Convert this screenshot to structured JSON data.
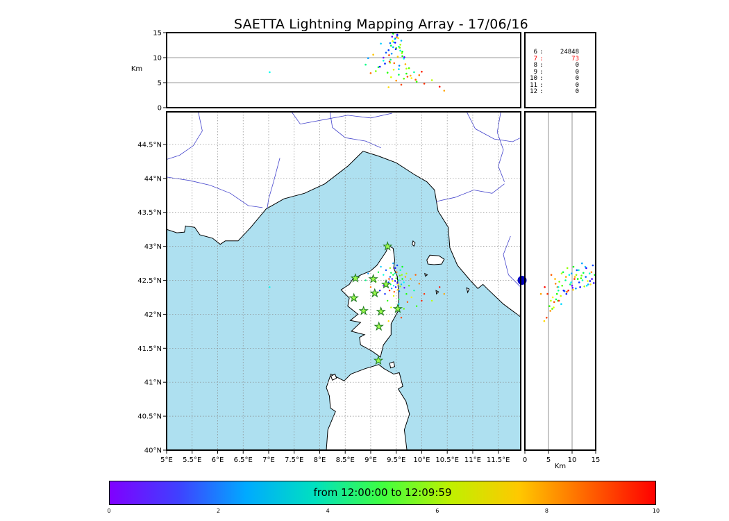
{
  "title": "SAETTA Lightning Mapping Array - 17/06/16",
  "axis_labels": {
    "top_y": "Km",
    "right_x": "Km"
  },
  "stats": {
    "separator": ":",
    "rows": [
      {
        "label": "6",
        "value": "24848",
        "color": "#000000"
      },
      {
        "label": "7",
        "value": "73",
        "color": "#ff0000"
      },
      {
        "label": "8",
        "value": "0",
        "color": "#000000"
      },
      {
        "label": "9",
        "value": "0",
        "color": "#000000"
      },
      {
        "label": "10",
        "value": "0",
        "color": "#000000"
      },
      {
        "label": "11",
        "value": "0",
        "color": "#000000"
      },
      {
        "label": "12",
        "value": "0",
        "color": "#000000"
      }
    ]
  },
  "colorbar": {
    "label": "from 12:00:00 to 12:09:59",
    "tmin": 0,
    "tmax": 10,
    "ticks": [
      {
        "v": 0,
        "label": "0"
      },
      {
        "v": 2,
        "label": "2"
      },
      {
        "v": 4,
        "label": "4"
      },
      {
        "v": 6,
        "label": "6"
      },
      {
        "v": 8,
        "label": "8"
      },
      {
        "v": 10,
        "label": "10"
      }
    ],
    "gradient": [
      "#8000ff",
      "#4040ff",
      "#00aaff",
      "#00e0c0",
      "#40ff40",
      "#c0f000",
      "#ffc800",
      "#ff6400",
      "#ff0000"
    ]
  },
  "colors": {
    "sea": "#aee0f0",
    "land": "#ffffff",
    "coast": "#000000",
    "river": "#4444cc",
    "grid": "#888888",
    "panel_grid": "#777777",
    "station_fill": "#9dfb50",
    "station_edge": "#1f7a1f",
    "marker_blue": "#0000bb"
  },
  "chart_data": {
    "type": "scatter",
    "title": "SAETTA Lightning Mapping Array - 17/06/16",
    "panels": {
      "top": {
        "name": "altitude-vs-longitude",
        "ylabel": "Km",
        "ylim": [
          0,
          15
        ],
        "yticks": [
          {
            "v": 0,
            "label": "0"
          },
          {
            "v": 5,
            "label": "5"
          },
          {
            "v": 10,
            "label": "10"
          },
          {
            "v": 15,
            "label": "15"
          }
        ]
      },
      "map": {
        "name": "plan-view",
        "xlim": [
          5,
          11.94
        ],
        "ylim": [
          40,
          44.98
        ],
        "lon_ticks": [
          {
            "v": 5,
            "label": "5°E"
          },
          {
            "v": 5.5,
            "label": "5.5°E"
          },
          {
            "v": 6,
            "label": "6°E"
          },
          {
            "v": 6.5,
            "label": "6.5°E"
          },
          {
            "v": 7,
            "label": "7°E"
          },
          {
            "v": 7.5,
            "label": "7.5°E"
          },
          {
            "v": 8,
            "label": "8°E"
          },
          {
            "v": 8.5,
            "label": "8.5°E"
          },
          {
            "v": 9,
            "label": "9°E"
          },
          {
            "v": 9.5,
            "label": "9.5°E"
          },
          {
            "v": 10,
            "label": "10°E"
          },
          {
            "v": 10.5,
            "label": "10.5°E"
          },
          {
            "v": 11,
            "label": "11°E"
          },
          {
            "v": 11.5,
            "label": "11.5°E"
          }
        ],
        "lat_ticks": [
          {
            "v": 40,
            "label": "40°N"
          },
          {
            "v": 40.5,
            "label": "40.5°N"
          },
          {
            "v": 41,
            "label": "41°N"
          },
          {
            "v": 41.5,
            "label": "41.5°N"
          },
          {
            "v": 42,
            "label": "42°N"
          },
          {
            "v": 42.5,
            "label": "42.5°N"
          },
          {
            "v": 43,
            "label": "43°N"
          },
          {
            "v": 43.5,
            "label": "43.5°N"
          },
          {
            "v": 44,
            "label": "44°N"
          },
          {
            "v": 44.5,
            "label": "44.5°N"
          }
        ]
      },
      "right": {
        "name": "altitude-vs-latitude",
        "xlabel": "Km",
        "xlim": [
          0,
          15
        ],
        "xticks": [
          {
            "v": 0,
            "label": "0"
          },
          {
            "v": 5,
            "label": "5"
          },
          {
            "v": 10,
            "label": "10"
          },
          {
            "v": 15,
            "label": "15"
          }
        ],
        "marker": {
          "km": 0,
          "lat": 42.5
        }
      }
    },
    "points": [
      [
        9.42,
        42.52,
        14.2,
        0.5
      ],
      [
        9.48,
        42.49,
        13.8,
        1.2
      ],
      [
        9.38,
        42.55,
        12.9,
        2.0
      ],
      [
        9.52,
        42.46,
        14.6,
        0.8
      ],
      [
        9.45,
        42.42,
        13.1,
        3.1
      ],
      [
        9.55,
        42.5,
        12.2,
        4.0
      ],
      [
        9.35,
        42.47,
        11.5,
        1.6
      ],
      [
        9.6,
        42.44,
        13.4,
        2.7
      ],
      [
        9.44,
        42.58,
        14.8,
        5.2
      ],
      [
        9.5,
        42.53,
        11.9,
        6.1
      ],
      [
        9.41,
        42.38,
        10.8,
        2.4
      ],
      [
        9.58,
        42.41,
        12.6,
        7.0
      ],
      [
        9.47,
        42.6,
        13.7,
        3.8
      ],
      [
        9.53,
        42.36,
        10.2,
        8.2
      ],
      [
        9.39,
        42.44,
        9.6,
        4.6
      ],
      [
        9.62,
        42.52,
        11.2,
        5.5
      ],
      [
        9.46,
        42.33,
        8.9,
        9.1
      ],
      [
        9.57,
        42.57,
        12.0,
        6.6
      ],
      [
        9.43,
        42.49,
        13.3,
        7.7
      ],
      [
        9.51,
        42.62,
        14.1,
        8.8
      ],
      [
        9.36,
        42.52,
        10.5,
        9.5
      ],
      [
        9.65,
        42.47,
        9.8,
        3.3
      ],
      [
        9.49,
        42.4,
        11.7,
        1.0
      ],
      [
        9.56,
        42.34,
        8.4,
        2.2
      ],
      [
        9.4,
        42.61,
        12.4,
        4.9
      ],
      [
        9.61,
        42.58,
        10.9,
        6.9
      ],
      [
        9.45,
        42.27,
        7.6,
        7.4
      ],
      [
        9.54,
        42.44,
        13.9,
        8.0
      ],
      [
        9.37,
        42.35,
        9.2,
        9.8
      ],
      [
        9.66,
        42.39,
        10.1,
        0.3
      ],
      [
        9.7,
        42.3,
        6.8,
        5.8
      ],
      [
        9.75,
        42.42,
        7.9,
        6.3
      ],
      [
        9.8,
        42.25,
        5.9,
        7.9
      ],
      [
        9.68,
        42.55,
        8.7,
        8.5
      ],
      [
        9.72,
        42.18,
        6.2,
        9.3
      ],
      [
        9.85,
        42.35,
        7.1,
        4.2
      ],
      [
        9.9,
        42.12,
        5.2,
        6.0
      ],
      [
        9.95,
        42.45,
        6.5,
        8.9
      ],
      [
        10.05,
        42.3,
        4.8,
        9.6
      ],
      [
        10.2,
        42.2,
        5.5,
        7.2
      ],
      [
        10.35,
        42.4,
        4.2,
        9.9
      ],
      [
        9.3,
        42.65,
        11.0,
        1.8
      ],
      [
        9.25,
        42.58,
        9.4,
        3.6
      ],
      [
        9.2,
        42.7,
        12.8,
        2.9
      ],
      [
        9.15,
        42.62,
        8.1,
        5.0
      ],
      [
        9.1,
        42.48,
        7.3,
        6.7
      ],
      [
        9.05,
        42.55,
        10.6,
        8.3
      ],
      [
        9.0,
        42.4,
        6.9,
        9.0
      ],
      [
        8.95,
        42.6,
        9.9,
        2.5
      ],
      [
        8.9,
        42.5,
        8.6,
        4.4
      ],
      [
        9.33,
        42.2,
        7.0,
        5.9
      ],
      [
        9.4,
        42.1,
        6.1,
        7.5
      ],
      [
        9.5,
        42.05,
        5.4,
        8.7
      ],
      [
        9.6,
        41.95,
        4.6,
        9.4
      ],
      [
        9.55,
        42.15,
        7.7,
        3.0
      ],
      [
        9.65,
        42.08,
        5.8,
        6.4
      ],
      [
        9.28,
        42.3,
        8.8,
        1.4
      ],
      [
        9.35,
        41.9,
        4.1,
        8.1
      ],
      [
        9.48,
        42.68,
        13.0,
        0.9
      ],
      [
        9.52,
        42.72,
        14.4,
        1.7
      ],
      [
        9.44,
        42.75,
        12.1,
        2.6
      ],
      [
        9.58,
        42.65,
        11.4,
        3.9
      ],
      [
        9.62,
        42.7,
        10.3,
        5.4
      ],
      [
        9.38,
        42.68,
        9.0,
        6.8
      ],
      [
        9.55,
        42.22,
        6.6,
        4.8
      ],
      [
        9.7,
        42.6,
        7.8,
        7.1
      ],
      [
        9.78,
        42.52,
        6.4,
        8.4
      ],
      [
        9.88,
        42.58,
        5.6,
        9.2
      ],
      [
        9.25,
        42.42,
        10.0,
        0.2
      ],
      [
        9.18,
        42.35,
        8.2,
        1.1
      ],
      [
        7.02,
        42.4,
        7.1,
        3.5
      ],
      [
        10.44,
        42.3,
        3.4,
        8.6
      ],
      [
        10.0,
        42.2,
        7.2,
        9.7
      ]
    ],
    "stations": [
      [
        9.33,
        43.0
      ],
      [
        8.7,
        42.53
      ],
      [
        9.05,
        42.52
      ],
      [
        9.3,
        42.44
      ],
      [
        9.08,
        42.31
      ],
      [
        8.67,
        42.24
      ],
      [
        8.86,
        42.05
      ],
      [
        9.2,
        42.04
      ],
      [
        9.53,
        42.08
      ],
      [
        9.16,
        41.82
      ],
      [
        9.15,
        41.32
      ]
    ],
    "coastlines": {
      "mainland": [
        [
          5.0,
          43.25
        ],
        [
          5.2,
          43.2
        ],
        [
          5.35,
          43.21
        ],
        [
          5.37,
          43.3
        ],
        [
          5.55,
          43.28
        ],
        [
          5.65,
          43.17
        ],
        [
          5.9,
          43.12
        ],
        [
          6.05,
          43.03
        ],
        [
          6.15,
          43.08
        ],
        [
          6.4,
          43.08
        ],
        [
          6.65,
          43.28
        ],
        [
          6.95,
          43.55
        ],
        [
          7.3,
          43.7
        ],
        [
          7.7,
          43.78
        ],
        [
          8.1,
          43.92
        ],
        [
          8.55,
          44.18
        ],
        [
          8.85,
          44.4
        ],
        [
          9.15,
          44.33
        ],
        [
          9.5,
          44.23
        ],
        [
          9.85,
          44.06
        ],
        [
          10.1,
          43.95
        ],
        [
          10.25,
          43.83
        ],
        [
          10.32,
          43.52
        ],
        [
          10.52,
          43.28
        ],
        [
          10.55,
          42.98
        ],
        [
          10.7,
          42.72
        ],
        [
          10.95,
          42.5
        ],
        [
          11.1,
          42.38
        ],
        [
          11.2,
          42.44
        ],
        [
          11.28,
          42.38
        ],
        [
          11.6,
          42.15
        ],
        [
          11.94,
          41.96
        ],
        [
          11.94,
          44.98
        ],
        [
          5.0,
          44.98
        ]
      ],
      "corsica": [
        [
          9.35,
          43.01
        ],
        [
          9.44,
          42.97
        ],
        [
          9.47,
          42.8
        ],
        [
          9.45,
          42.68
        ],
        [
          9.52,
          42.56
        ],
        [
          9.55,
          42.28
        ],
        [
          9.54,
          42.05
        ],
        [
          9.4,
          41.86
        ],
        [
          9.4,
          41.7
        ],
        [
          9.25,
          41.55
        ],
        [
          9.19,
          41.37
        ],
        [
          9.02,
          41.46
        ],
        [
          8.8,
          41.55
        ],
        [
          8.78,
          41.66
        ],
        [
          8.88,
          41.7
        ],
        [
          8.62,
          41.75
        ],
        [
          8.8,
          41.88
        ],
        [
          8.6,
          41.91
        ],
        [
          8.75,
          42.0
        ],
        [
          8.55,
          42.12
        ],
        [
          8.58,
          42.24
        ],
        [
          8.42,
          42.36
        ],
        [
          8.58,
          42.44
        ],
        [
          8.65,
          42.52
        ],
        [
          8.81,
          42.58
        ],
        [
          9.0,
          42.64
        ],
        [
          9.12,
          42.72
        ],
        [
          9.3,
          42.92
        ]
      ],
      "sardinia": [
        [
          8.13,
          40.0
        ],
        [
          8.16,
          40.3
        ],
        [
          8.31,
          40.57
        ],
        [
          8.21,
          40.62
        ],
        [
          8.19,
          40.8
        ],
        [
          8.13,
          40.92
        ],
        [
          8.22,
          41.12
        ],
        [
          8.48,
          41.02
        ],
        [
          8.61,
          41.12
        ],
        [
          8.89,
          41.2
        ],
        [
          9.16,
          41.26
        ],
        [
          9.26,
          41.2
        ],
        [
          9.45,
          41.12
        ],
        [
          9.56,
          41.14
        ],
        [
          9.63,
          40.94
        ],
        [
          9.54,
          40.9
        ],
        [
          9.69,
          40.72
        ],
        [
          9.76,
          40.53
        ],
        [
          9.66,
          40.3
        ],
        [
          9.71,
          40.0
        ]
      ],
      "islands": [
        [
          [
            10.1,
            42.8
          ],
          [
            10.16,
            42.87
          ],
          [
            10.34,
            42.86
          ],
          [
            10.44,
            42.81
          ],
          [
            10.39,
            42.74
          ],
          [
            10.24,
            42.73
          ],
          [
            10.12,
            42.74
          ]
        ],
        [
          [
            9.83,
            43.08
          ],
          [
            9.87,
            43.05
          ],
          [
            9.85,
            43.0
          ],
          [
            9.81,
            43.03
          ]
        ],
        [
          [
            8.22,
            41.09
          ],
          [
            8.3,
            41.12
          ],
          [
            8.33,
            41.06
          ],
          [
            8.25,
            41.03
          ]
        ],
        [
          [
            9.37,
            41.28
          ],
          [
            9.45,
            41.3
          ],
          [
            9.47,
            41.23
          ],
          [
            9.39,
            41.21
          ]
        ],
        [
          [
            10.88,
            42.39
          ],
          [
            10.93,
            42.37
          ],
          [
            10.9,
            42.32
          ]
        ],
        [
          [
            10.28,
            42.35
          ],
          [
            10.33,
            42.33
          ],
          [
            10.29,
            42.3
          ]
        ],
        [
          [
            10.06,
            42.6
          ],
          [
            10.11,
            42.58
          ],
          [
            10.07,
            42.56
          ]
        ]
      ]
    },
    "rivers": [
      [
        [
          5.62,
          44.98
        ],
        [
          5.7,
          44.7
        ],
        [
          5.52,
          44.48
        ],
        [
          5.25,
          44.34
        ],
        [
          5.0,
          44.28
        ]
      ],
      [
        [
          5.0,
          44.02
        ],
        [
          5.45,
          43.97
        ],
        [
          5.85,
          43.9
        ],
        [
          6.25,
          43.78
        ],
        [
          6.6,
          43.6
        ],
        [
          6.88,
          43.57
        ]
      ],
      [
        [
          7.22,
          44.3
        ],
        [
          7.1,
          43.96
        ],
        [
          7.0,
          43.7
        ],
        [
          6.97,
          43.56
        ]
      ],
      [
        [
          7.45,
          44.98
        ],
        [
          7.62,
          44.8
        ],
        [
          8.05,
          44.86
        ],
        [
          8.55,
          44.93
        ],
        [
          9.0,
          44.89
        ],
        [
          9.42,
          44.96
        ]
      ],
      [
        [
          8.2,
          44.98
        ],
        [
          8.25,
          44.75
        ],
        [
          8.5,
          44.6
        ],
        [
          8.9,
          44.55
        ],
        [
          9.2,
          44.45
        ]
      ],
      [
        [
          10.28,
          43.66
        ],
        [
          10.65,
          43.72
        ],
        [
          11.02,
          43.83
        ],
        [
          11.38,
          43.78
        ],
        [
          11.62,
          43.92
        ]
      ],
      [
        [
          10.88,
          44.98
        ],
        [
          11.05,
          44.73
        ],
        [
          11.42,
          44.58
        ],
        [
          11.78,
          44.54
        ],
        [
          11.94,
          44.6
        ]
      ],
      [
        [
          11.55,
          44.98
        ],
        [
          11.48,
          44.68
        ],
        [
          11.6,
          44.42
        ],
        [
          11.5,
          44.18
        ],
        [
          11.62,
          43.95
        ]
      ],
      [
        [
          11.94,
          42.4
        ],
        [
          11.7,
          42.58
        ],
        [
          11.6,
          42.88
        ],
        [
          11.74,
          43.15
        ]
      ]
    ]
  }
}
